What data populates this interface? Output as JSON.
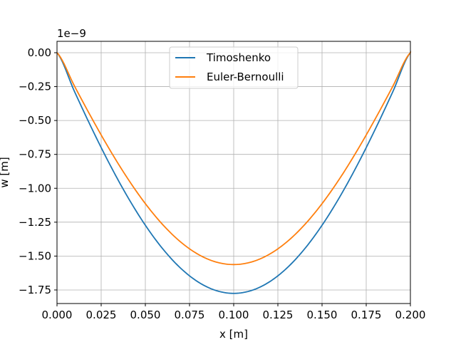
{
  "chart_data": {
    "type": "line",
    "title": "",
    "xlabel": "x [m]",
    "ylabel": "w [m]",
    "y_offset_text": "1e−9",
    "xlim": [
      0.0,
      0.2
    ],
    "ylim": [
      -1.85,
      0.084
    ],
    "grid": true,
    "legend_position": "top-center",
    "x_ticks": [
      "0.000",
      "0.025",
      "0.050",
      "0.075",
      "0.100",
      "0.125",
      "0.150",
      "0.175",
      "0.200"
    ],
    "x_tick_values": [
      0.0,
      0.025,
      0.05,
      0.075,
      0.1,
      0.125,
      0.15,
      0.175,
      0.2
    ],
    "y_ticks": [
      "0.00",
      "−0.25",
      "−0.50",
      "−0.75",
      "−1.00",
      "−1.25",
      "−1.50",
      "−1.75"
    ],
    "y_tick_values": [
      0,
      -0.25,
      -0.5,
      -0.75,
      -1.0,
      -1.25,
      -1.5,
      -1.75
    ],
    "x": [
      0,
      0.01,
      0.02,
      0.03,
      0.04,
      0.05,
      0.06,
      0.07,
      0.08,
      0.09,
      0.1,
      0.11,
      0.12,
      0.13,
      0.14,
      0.15,
      0.16,
      0.17,
      0.18,
      0.19,
      0.2
    ],
    "series": [
      {
        "name": "Timoshenko",
        "color": "#1f77b4",
        "values": [
          0,
          -0.2892,
          -0.567,
          -0.8272,
          -1.064,
          -1.2727,
          -1.449,
          -1.5897,
          -1.692,
          -1.7542,
          -1.775,
          -1.7542,
          -1.692,
          -1.5897,
          -1.449,
          -1.2727,
          -1.064,
          -0.8272,
          -0.567,
          -0.2892,
          0
        ]
      },
      {
        "name": "Euler-Bernoulli",
        "color": "#ff7f0e",
        "values": [
          0,
          -0.2488,
          -0.4905,
          -0.7188,
          -0.928,
          -1.1133,
          -1.2705,
          -1.3963,
          -1.488,
          -1.5438,
          -1.5625,
          -1.5438,
          -1.488,
          -1.3963,
          -1.2705,
          -1.1133,
          -0.928,
          -0.7188,
          -0.4905,
          -0.2488,
          0
        ]
      }
    ]
  }
}
